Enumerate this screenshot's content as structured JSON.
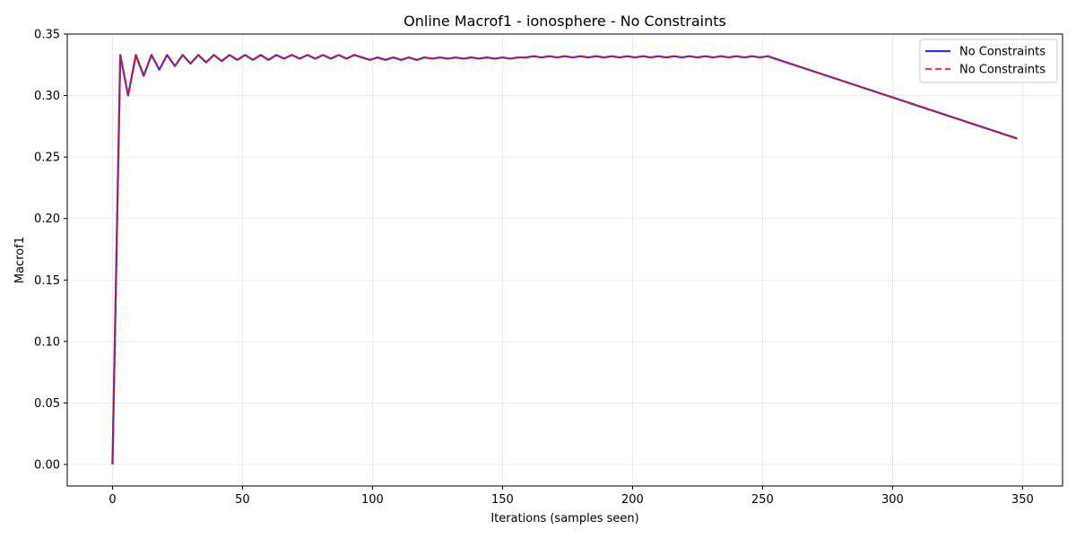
{
  "chart_data": {
    "type": "line",
    "title": "Online Macrof1 - ionosphere - No Constraints",
    "xlabel": "Iterations (samples seen)",
    "ylabel": "Macrof1",
    "xlim": [
      -17.4,
      365.4
    ],
    "ylim": [
      -0.0175,
      0.35
    ],
    "xticks": [
      0,
      50,
      100,
      150,
      200,
      250,
      300,
      350
    ],
    "yticks": [
      0.0,
      0.05,
      0.1,
      0.15,
      0.2,
      0.25,
      0.3,
      0.35
    ],
    "xtick_labels": [
      "0",
      "50",
      "100",
      "150",
      "200",
      "250",
      "300",
      "350"
    ],
    "ytick_labels": [
      "0.00",
      "0.05",
      "0.10",
      "0.15",
      "0.20",
      "0.25",
      "0.30",
      "0.35"
    ],
    "grid": true,
    "legend_position": "top-right",
    "series": [
      {
        "name": "No Constraints",
        "color": "#0000dd",
        "style": "solid",
        "x": [
          0,
          3,
          6,
          9,
          12,
          15,
          18,
          21,
          24,
          27,
          30,
          33,
          36,
          39,
          42,
          45,
          48,
          51,
          54,
          57,
          60,
          63,
          66,
          69,
          72,
          75,
          78,
          81,
          84,
          87,
          90,
          93,
          96,
          99,
          102,
          105,
          108,
          111,
          114,
          117,
          120,
          123,
          126,
          129,
          132,
          135,
          138,
          141,
          144,
          147,
          150,
          153,
          156,
          159,
          162,
          165,
          168,
          171,
          174,
          177,
          180,
          183,
          186,
          189,
          192,
          195,
          198,
          201,
          204,
          207,
          210,
          213,
          216,
          219,
          222,
          225,
          228,
          231,
          234,
          237,
          240,
          243,
          246,
          249,
          252,
          348
        ],
        "y": [
          0.0,
          0.333,
          0.3,
          0.333,
          0.316,
          0.333,
          0.321,
          0.333,
          0.324,
          0.333,
          0.326,
          0.333,
          0.327,
          0.333,
          0.328,
          0.333,
          0.329,
          0.333,
          0.329,
          0.333,
          0.329,
          0.333,
          0.33,
          0.333,
          0.33,
          0.333,
          0.33,
          0.333,
          0.33,
          0.333,
          0.33,
          0.333,
          0.331,
          0.329,
          0.331,
          0.329,
          0.331,
          0.329,
          0.331,
          0.329,
          0.331,
          0.33,
          0.331,
          0.33,
          0.331,
          0.33,
          0.331,
          0.33,
          0.331,
          0.33,
          0.331,
          0.33,
          0.331,
          0.331,
          0.332,
          0.331,
          0.332,
          0.331,
          0.332,
          0.331,
          0.332,
          0.331,
          0.332,
          0.331,
          0.332,
          0.331,
          0.332,
          0.331,
          0.332,
          0.331,
          0.332,
          0.331,
          0.332,
          0.331,
          0.332,
          0.331,
          0.332,
          0.331,
          0.332,
          0.331,
          0.332,
          0.331,
          0.332,
          0.331,
          0.332,
          0.265
        ]
      },
      {
        "name": "No Constraints",
        "color": "#ee1111",
        "style": "dashed",
        "x": [
          0,
          3,
          6,
          9,
          12,
          15,
          18,
          21,
          24,
          27,
          30,
          33,
          36,
          39,
          42,
          45,
          48,
          51,
          54,
          57,
          60,
          63,
          66,
          69,
          72,
          75,
          78,
          81,
          84,
          87,
          90,
          93,
          96,
          99,
          102,
          105,
          108,
          111,
          114,
          117,
          120,
          123,
          126,
          129,
          132,
          135,
          138,
          141,
          144,
          147,
          150,
          153,
          156,
          159,
          162,
          165,
          168,
          171,
          174,
          177,
          180,
          183,
          186,
          189,
          192,
          195,
          198,
          201,
          204,
          207,
          210,
          213,
          216,
          219,
          222,
          225,
          228,
          231,
          234,
          237,
          240,
          243,
          246,
          249,
          252,
          348
        ],
        "y": [
          0.0,
          0.333,
          0.3,
          0.333,
          0.316,
          0.333,
          0.321,
          0.333,
          0.324,
          0.333,
          0.326,
          0.333,
          0.327,
          0.333,
          0.328,
          0.333,
          0.329,
          0.333,
          0.329,
          0.333,
          0.329,
          0.333,
          0.33,
          0.333,
          0.33,
          0.333,
          0.33,
          0.333,
          0.33,
          0.333,
          0.33,
          0.333,
          0.331,
          0.329,
          0.331,
          0.329,
          0.331,
          0.329,
          0.331,
          0.329,
          0.331,
          0.33,
          0.331,
          0.33,
          0.331,
          0.33,
          0.331,
          0.33,
          0.331,
          0.33,
          0.331,
          0.33,
          0.331,
          0.331,
          0.332,
          0.331,
          0.332,
          0.331,
          0.332,
          0.331,
          0.332,
          0.331,
          0.332,
          0.331,
          0.332,
          0.331,
          0.332,
          0.331,
          0.332,
          0.331,
          0.332,
          0.331,
          0.332,
          0.331,
          0.332,
          0.331,
          0.332,
          0.331,
          0.332,
          0.331,
          0.332,
          0.331,
          0.332,
          0.331,
          0.332,
          0.265
        ]
      }
    ]
  }
}
